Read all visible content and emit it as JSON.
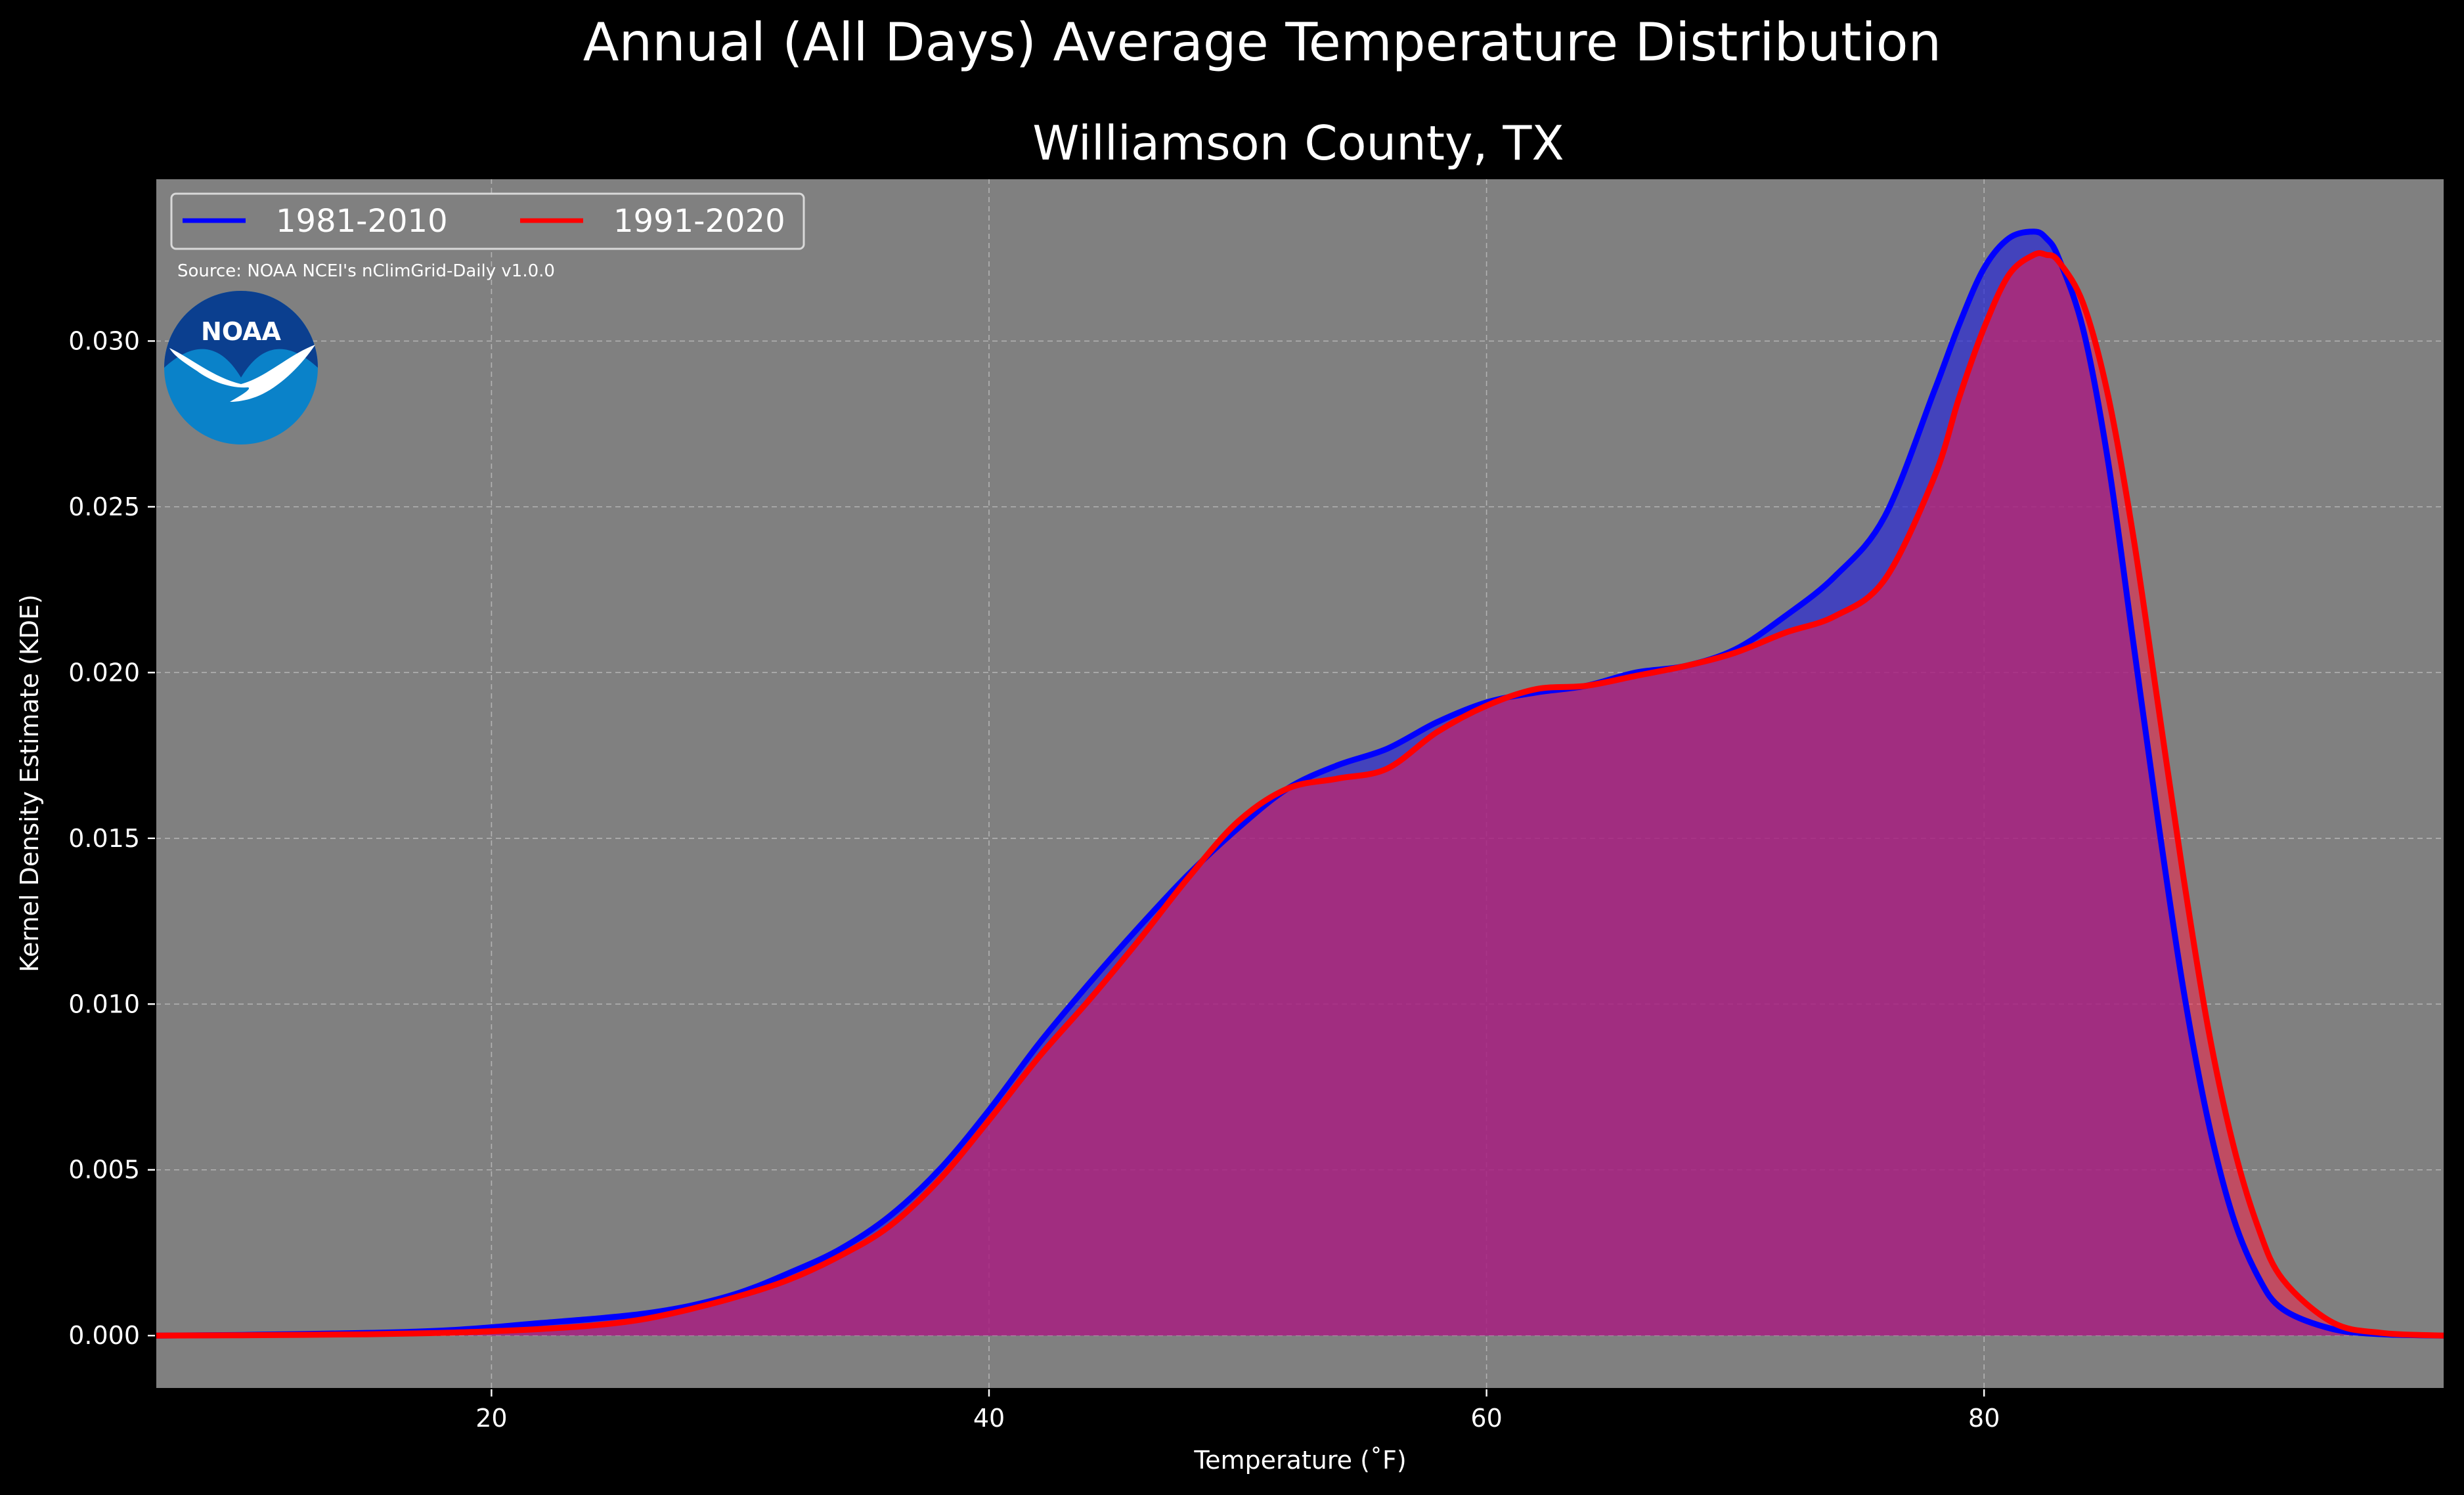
{
  "chart_data": {
    "type": "area",
    "title": "Annual (All Days) Average Temperature Distribution",
    "subtitle": "Williamson County, TX",
    "xlabel": "Temperature ($^\\circ$F)",
    "xlabel_display": "Temperature (˚F)",
    "ylabel": "Kernel Density Estimate (KDE)",
    "xlim": [
      6.5,
      98.5
    ],
    "ylim": [
      -0.0016,
      0.0349
    ],
    "x_ticks": [
      20,
      40,
      60,
      80
    ],
    "y_ticks": [
      0.0,
      0.005,
      0.01,
      0.015,
      0.02,
      0.025,
      0.03
    ],
    "x_tick_labels": [
      "20",
      "40",
      "60",
      "80"
    ],
    "y_tick_labels": [
      "0.000",
      "0.005",
      "0.010",
      "0.015",
      "0.020",
      "0.025",
      "0.030"
    ],
    "grid": true,
    "legend_position": "top-left",
    "source_note": "Source: NOAA NCEI's nClimGrid-Daily v1.0.0",
    "logo_text": "NOAA",
    "background_color": "#000000",
    "plot_background_color": "#808080",
    "series": [
      {
        "name": "1981-2010",
        "color": "#0000ff",
        "fill_color": "#2a2ad6",
        "x": [
          6.5,
          10,
          15,
          18,
          20,
          22,
          24,
          26,
          28,
          30,
          32,
          34,
          36,
          38,
          40,
          42,
          44,
          46,
          48,
          50,
          52,
          54,
          56,
          58,
          60,
          62,
          64,
          66,
          68,
          70,
          72,
          74,
          76,
          78,
          79,
          80,
          81,
          82,
          82.5,
          83,
          84,
          85,
          86,
          87,
          88,
          89,
          90,
          91,
          92,
          94,
          96,
          98.5
        ],
        "y": [
          0.0,
          2e-05,
          8e-05,
          0.00015,
          0.00025,
          0.00038,
          0.0005,
          0.00065,
          0.0009,
          0.0013,
          0.0019,
          0.0026,
          0.0036,
          0.005,
          0.0068,
          0.0088,
          0.0106,
          0.0123,
          0.0139,
          0.0153,
          0.0165,
          0.0172,
          0.0177,
          0.0185,
          0.0191,
          0.0194,
          0.0196,
          0.02,
          0.0202,
          0.0207,
          0.0217,
          0.0229,
          0.0247,
          0.0285,
          0.0305,
          0.0322,
          0.0331,
          0.0333,
          0.0331,
          0.0325,
          0.0303,
          0.0263,
          0.0209,
          0.0155,
          0.0105,
          0.0065,
          0.0036,
          0.0018,
          0.0008,
          0.0002,
          4e-05,
          0.0
        ]
      },
      {
        "name": "1991-2020",
        "color": "#ff0000",
        "fill_color": "#ff1744",
        "x": [
          6.5,
          10,
          15,
          18,
          20,
          22,
          24,
          26,
          28,
          30,
          32,
          34,
          36,
          38,
          40,
          42,
          44,
          46,
          48,
          50,
          52,
          54,
          56,
          58,
          60,
          62,
          64,
          66,
          68,
          70,
          72,
          74,
          76,
          78,
          79,
          80,
          81,
          82,
          82.5,
          83,
          84,
          85,
          86,
          87,
          88,
          89,
          90,
          91,
          92,
          94,
          96,
          98.5
        ],
        "y": [
          0.0,
          1e-05,
          4e-05,
          8e-05,
          0.00013,
          0.0002,
          0.0003,
          0.00048,
          0.0008,
          0.0012,
          0.0017,
          0.0024,
          0.0033,
          0.0047,
          0.0065,
          0.0084,
          0.0101,
          0.0119,
          0.0138,
          0.0155,
          0.0165,
          0.0168,
          0.0171,
          0.0182,
          0.019,
          0.0195,
          0.0196,
          0.0199,
          0.0202,
          0.0206,
          0.0212,
          0.0217,
          0.0228,
          0.0259,
          0.0283,
          0.0304,
          0.032,
          0.0326,
          0.0326,
          0.0324,
          0.0311,
          0.0283,
          0.0241,
          0.019,
          0.0139,
          0.0093,
          0.0058,
          0.0033,
          0.0017,
          0.0004,
          8e-05,
          0.0
        ]
      }
    ]
  }
}
